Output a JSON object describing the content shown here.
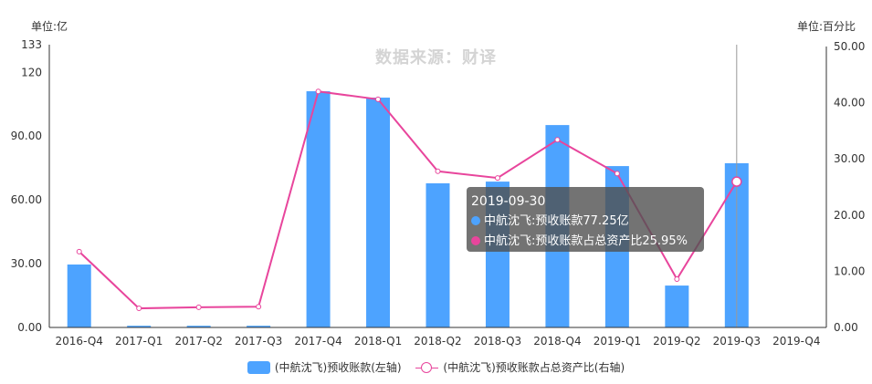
{
  "left_unit_label": "单位:亿",
  "right_unit_label": "单位:百分比",
  "watermark": "数据来源：财译",
  "tooltip": {
    "date": "2019-09-30",
    "row1": "中航沈飞:预收账款77.25亿",
    "row2": "中航沈飞:预收账款占总资产比25.95%"
  },
  "legend": {
    "bar_label": "(中航沈飞)预收账款(左轴)",
    "line_label": "(中航沈飞)预收账款占总资产比(右轴)"
  },
  "colors": {
    "bar": "#4da3ff",
    "line": "#e8459c",
    "axis": "#333333"
  },
  "chart_data": {
    "type": "bar+line",
    "title": "",
    "watermark": "数据来源：财译",
    "categories": [
      "2016-Q4",
      "2017-Q1",
      "2017-Q2",
      "2017-Q3",
      "2017-Q4",
      "2018-Q1",
      "2018-Q2",
      "2018-Q3",
      "2018-Q4",
      "2019-Q1",
      "2019-Q2",
      "2019-Q3",
      "2019-Q4"
    ],
    "series": [
      {
        "name": "(中航沈飞)预收账款(左轴)",
        "type": "bar",
        "axis": "left",
        "values": [
          29.6,
          0.8,
          0.8,
          0.8,
          111.1,
          108.1,
          67.8,
          68.6,
          95.2,
          75.9,
          19.7,
          77.25,
          null
        ]
      },
      {
        "name": "(中航沈飞)预收账款占总资产比(右轴)",
        "type": "line",
        "axis": "right",
        "values": [
          13.5,
          3.4,
          3.6,
          3.7,
          42.0,
          40.6,
          27.8,
          26.6,
          33.4,
          27.4,
          8.6,
          25.95,
          null
        ]
      }
    ],
    "left_axis": {
      "label": "单位:亿",
      "ylim": [
        0,
        133
      ],
      "ticks": [
        "0.00",
        "30.00",
        "60.00",
        "90.00",
        "120",
        "133"
      ],
      "tick_values": [
        0,
        30,
        60,
        90,
        120,
        133
      ]
    },
    "right_axis": {
      "label": "单位:百分比",
      "ylim": [
        0,
        50
      ],
      "ticks": [
        "0.00",
        "10.00",
        "20.00",
        "30.00",
        "40.00",
        "50.00"
      ],
      "tick_values": [
        0,
        10,
        20,
        30,
        40,
        50
      ]
    },
    "grid": false,
    "legend_position": "bottom",
    "highlighted_category": "2019-Q3"
  }
}
